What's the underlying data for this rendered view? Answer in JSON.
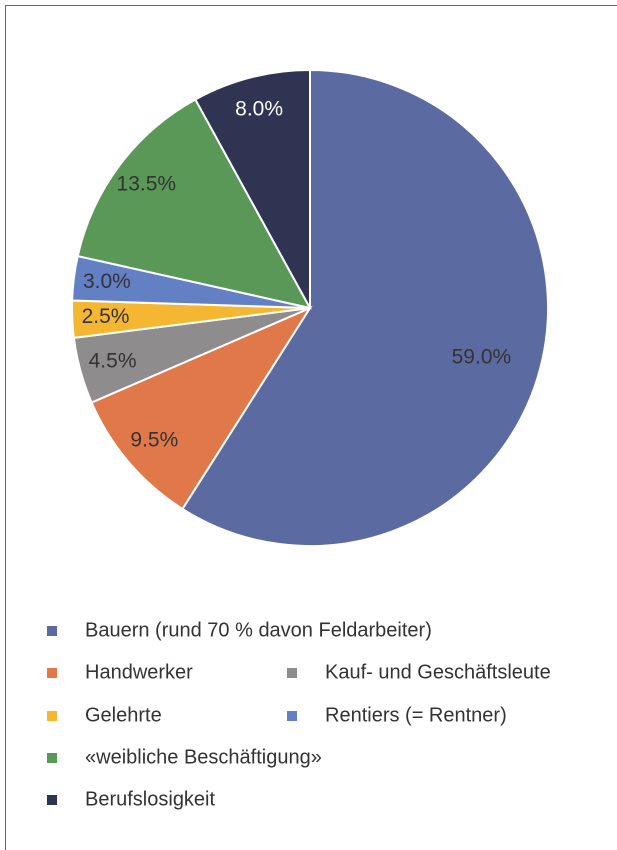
{
  "chart_data": {
    "type": "pie",
    "categories": [
      "Bauern (rund 70 % davon Feldarbeiter)",
      "Handwerker",
      "Kauf- und Geschäftsleute",
      "Gelehrte",
      "Rentiers (= Rentner)",
      "«weibliche Beschäftigung»",
      "Berufslosigkeit"
    ],
    "values": [
      59,
      9.5,
      4.5,
      2.5,
      3,
      13.5,
      8
    ],
    "value_labels": [
      "59.0%",
      "9.5%",
      "4.5%",
      "2.5%",
      "3.0%",
      "13.5%",
      "8.0%"
    ],
    "colors": [
      "#5b6aa0",
      "#e0784a",
      "#8e8c8c",
      "#f5b731",
      "#6480c4",
      "#5a9858",
      "#2e3452"
    ],
    "legend": "bottom"
  }
}
